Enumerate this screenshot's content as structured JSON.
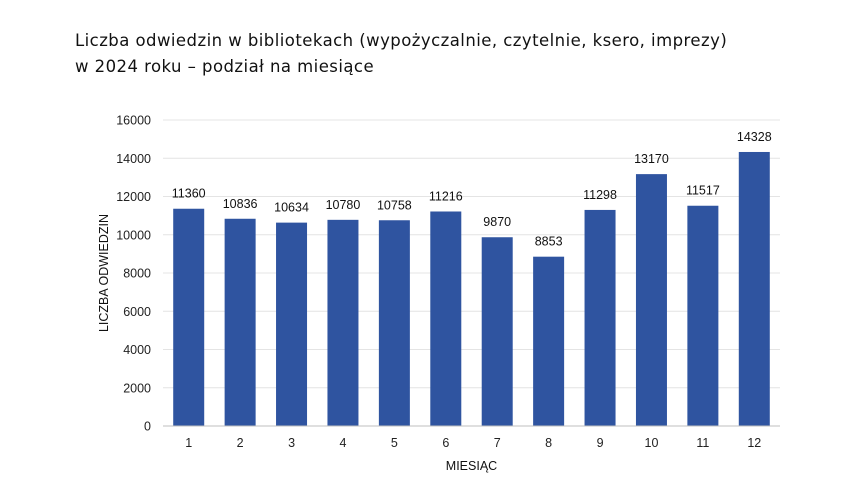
{
  "title_lines": [
    "Liczba odwiedzin w bibliotekach (wypożyczalnie, czytelnie, ksero, imprezy)",
    "w 2024 roku – podział na miesiące"
  ],
  "colors": {
    "bar": "#2F54A0",
    "grid": "#E4E4E4",
    "axis": "#BFBFBF"
  },
  "chart_data": {
    "type": "bar",
    "title": "Liczba odwiedzin w bibliotekach (wypożyczalnie, czytelnie, ksero, imprezy) w 2024 roku – podział na miesiące",
    "xlabel": "MIESIĄC",
    "ylabel": "LICZBA ODWIEDZIN",
    "categories": [
      "1",
      "2",
      "3",
      "4",
      "5",
      "6",
      "7",
      "8",
      "9",
      "10",
      "11",
      "12"
    ],
    "values": [
      11360,
      10836,
      10634,
      10780,
      10758,
      11216,
      9870,
      8853,
      11298,
      13170,
      11517,
      14328
    ],
    "ylim": [
      0,
      16000
    ],
    "yticks": [
      0,
      2000,
      4000,
      6000,
      8000,
      10000,
      12000,
      14000,
      16000
    ],
    "grid": true,
    "legend": "none"
  }
}
